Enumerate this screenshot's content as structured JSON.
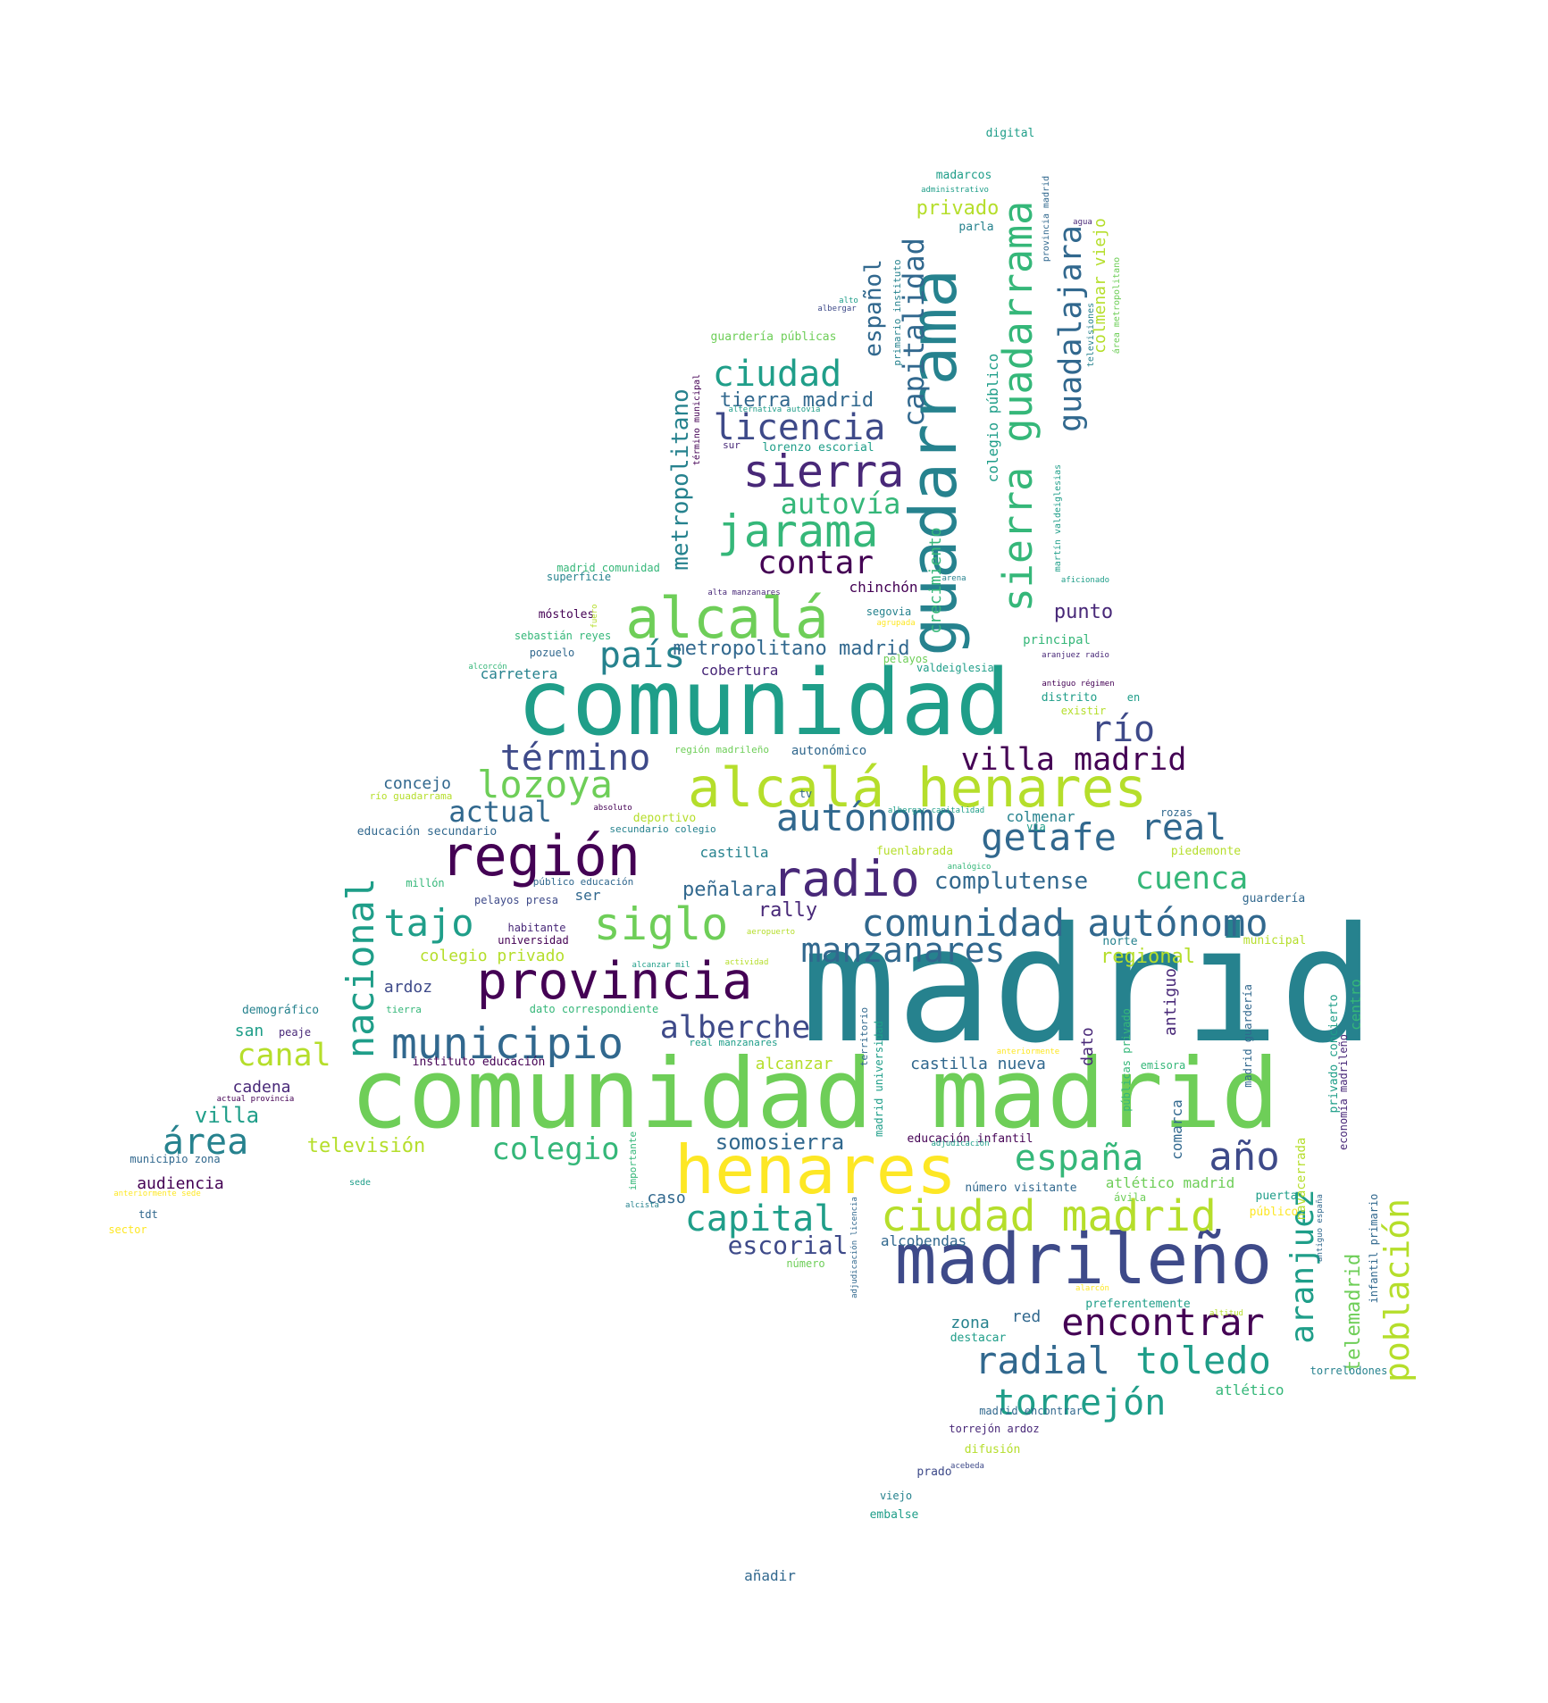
{
  "palette": {
    "c0": "#440154",
    "c1": "#482878",
    "c2": "#3e4a89",
    "c3": "#31688e",
    "c4": "#26828e",
    "c5": "#1f9e89",
    "c6": "#35b779",
    "c7": "#6ece58",
    "c8": "#b5de2b",
    "c9": "#fde725"
  },
  "words": [
    {
      "text": "madrid",
      "color": "c4"
    },
    {
      "text": "comunidad madrid",
      "color": "c7"
    },
    {
      "text": "comunidad",
      "color": "c5"
    },
    {
      "text": "guadarrama",
      "color": "c4"
    },
    {
      "text": "madrileño",
      "color": "c2"
    },
    {
      "text": "henares",
      "color": "c9"
    },
    {
      "text": "alcalá henares",
      "color": "c8"
    },
    {
      "text": "región",
      "color": "c0"
    },
    {
      "text": "alcalá",
      "color": "c7"
    },
    {
      "text": "provincia",
      "color": "c0"
    },
    {
      "text": "sierra guadarrama",
      "color": "c6"
    },
    {
      "text": "radio",
      "color": "c1"
    },
    {
      "text": "ciudad madrid",
      "color": "c8"
    },
    {
      "text": "municipio",
      "color": "c3"
    },
    {
      "text": "sierra",
      "color": "c1"
    },
    {
      "text": "jarama",
      "color": "c6"
    },
    {
      "text": "siglo",
      "color": "c7"
    },
    {
      "text": "comunidad autónomo",
      "color": "c3"
    },
    {
      "text": "población",
      "color": "c8"
    },
    {
      "text": "nacional",
      "color": "c5"
    },
    {
      "text": "aranjuez",
      "color": "c5"
    },
    {
      "text": "encontrar",
      "color": "c0"
    },
    {
      "text": "toledo",
      "color": "c5"
    },
    {
      "text": "radial",
      "color": "c3"
    },
    {
      "text": "autónomo",
      "color": "c3"
    },
    {
      "text": "getafe",
      "color": "c3"
    },
    {
      "text": "área",
      "color": "c4"
    },
    {
      "text": "año",
      "color": "c2"
    },
    {
      "text": "tajo",
      "color": "c5"
    },
    {
      "text": "lozoya",
      "color": "c7"
    },
    {
      "text": "manzanares",
      "color": "c3"
    },
    {
      "text": "capital",
      "color": "c5"
    },
    {
      "text": "ciudad",
      "color": "c5"
    },
    {
      "text": "licencia",
      "color": "c2"
    },
    {
      "text": "guadalajara",
      "color": "c3"
    },
    {
      "text": "villa madrid",
      "color": "c0"
    },
    {
      "text": "españa",
      "color": "c6"
    },
    {
      "text": "torrejón",
      "color": "c5"
    },
    {
      "text": "término",
      "color": "c2"
    },
    {
      "text": "cuenca",
      "color": "c6"
    },
    {
      "text": "río",
      "color": "c2"
    },
    {
      "text": "real",
      "color": "c3"
    },
    {
      "text": "alberche",
      "color": "c2"
    },
    {
      "text": "canal",
      "color": "c8"
    },
    {
      "text": "colegio",
      "color": "c6"
    },
    {
      "text": "país",
      "color": "c4"
    },
    {
      "text": "contar",
      "color": "c0"
    },
    {
      "text": "capitalidad",
      "color": "c3"
    },
    {
      "text": "metropolitano",
      "color": "c4"
    },
    {
      "text": "actual",
      "color": "c3"
    },
    {
      "text": "autovía",
      "color": "c6"
    },
    {
      "text": "escorial",
      "color": "c2"
    },
    {
      "text": "español",
      "color": "c3"
    },
    {
      "text": "metropolitano madrid",
      "color": "c3"
    },
    {
      "text": "tierra madrid",
      "color": "c3"
    },
    {
      "text": "complutense",
      "color": "c3"
    },
    {
      "text": "villa",
      "color": "c5"
    },
    {
      "text": "somosierra",
      "color": "c3"
    },
    {
      "text": "televisión",
      "color": "c8"
    },
    {
      "text": "telemadrid",
      "color": "c7"
    },
    {
      "text": "colmenar viejo",
      "color": "c8"
    },
    {
      "text": "peñalara",
      "color": "c3"
    },
    {
      "text": "rally",
      "color": "c1"
    },
    {
      "text": "privado",
      "color": "c8"
    },
    {
      "text": "regional",
      "color": "c8"
    },
    {
      "text": "crecimiento",
      "color": "c6"
    },
    {
      "text": "punto",
      "color": "c1"
    },
    {
      "text": "concejo",
      "color": "c3"
    },
    {
      "text": "castilla nueva",
      "color": "c3"
    },
    {
      "text": "antiguo",
      "color": "c1"
    },
    {
      "text": "dato",
      "color": "c1"
    },
    {
      "text": "audiencia",
      "color": "c0"
    },
    {
      "text": "red",
      "color": "c3"
    },
    {
      "text": "zona",
      "color": "c4"
    },
    {
      "text": "alcanzar",
      "color": "c8"
    },
    {
      "text": "cadena",
      "color": "c1"
    },
    {
      "text": "san",
      "color": "c5"
    },
    {
      "text": "ardoz",
      "color": "c2"
    },
    {
      "text": "colegio privado",
      "color": "c8"
    },
    {
      "text": "colegio público",
      "color": "c5"
    },
    {
      "text": "centro",
      "color": "c6"
    },
    {
      "text": "cobertura",
      "color": "c1"
    },
    {
      "text": "chinchón",
      "color": "c0"
    },
    {
      "text": "colmenar",
      "color": "c4"
    },
    {
      "text": "castilla",
      "color": "c4"
    },
    {
      "text": "caso",
      "color": "c3"
    },
    {
      "text": "alcobendas",
      "color": "c3"
    },
    {
      "text": "atlético madrid",
      "color": "c7"
    },
    {
      "text": "atlético",
      "color": "c6"
    },
    {
      "text": "carretera",
      "color": "c4"
    },
    {
      "text": "ser",
      "color": "c3"
    },
    {
      "text": "comarca",
      "color": "c3"
    },
    {
      "text": "navacerrada",
      "color": "c8"
    },
    {
      "text": "privado concierto",
      "color": "c5"
    },
    {
      "text": "educación infantil",
      "color": "c0"
    },
    {
      "text": "número visitante",
      "color": "c3"
    },
    {
      "text": "principal",
      "color": "c6"
    },
    {
      "text": "lorenzo escorial",
      "color": "c5"
    },
    {
      "text": "guardería públicas",
      "color": "c7"
    },
    {
      "text": "madarcos",
      "color": "c5"
    },
    {
      "text": "digital",
      "color": "c5"
    },
    {
      "text": "parla",
      "color": "c4"
    },
    {
      "text": "madrid universidad",
      "color": "c5"
    },
    {
      "text": "madrid guardería",
      "color": "c3"
    },
    {
      "text": "economía madrileño",
      "color": "c1"
    },
    {
      "text": "infantil primario",
      "color": "c3"
    },
    {
      "text": "públicas privado",
      "color": "c6"
    },
    {
      "text": "preferentemente",
      "color": "c5"
    },
    {
      "text": "destacar",
      "color": "c5"
    },
    {
      "text": "madrid encontrar",
      "color": "c3"
    },
    {
      "text": "torrejón ardoz",
      "color": "c1"
    },
    {
      "text": "difusión",
      "color": "c8"
    },
    {
      "text": "prado",
      "color": "c2"
    },
    {
      "text": "viejo",
      "color": "c4"
    },
    {
      "text": "embalse",
      "color": "c5"
    },
    {
      "text": "añadir",
      "color": "c3"
    },
    {
      "text": "torrelodones",
      "color": "c4"
    },
    {
      "text": "puerta",
      "color": "c5"
    },
    {
      "text": "público",
      "color": "c9"
    },
    {
      "text": "emisora",
      "color": "c6"
    },
    {
      "text": "ávila",
      "color": "c7"
    },
    {
      "text": "guardería",
      "color": "c3"
    },
    {
      "text": "municipal",
      "color": "c8"
    },
    {
      "text": "norte",
      "color": "c4"
    },
    {
      "text": "piedemonte",
      "color": "c8"
    },
    {
      "text": "rozas",
      "color": "c3"
    },
    {
      "text": "fuenlabrada",
      "color": "c8"
    },
    {
      "text": "vía",
      "color": "c5"
    },
    {
      "text": "deportivo",
      "color": "c8"
    },
    {
      "text": "autonómico",
      "color": "c3"
    },
    {
      "text": "distrito",
      "color": "c5"
    },
    {
      "text": "existir",
      "color": "c8"
    },
    {
      "text": "en",
      "color": "c5"
    },
    {
      "text": "valdeiglesias",
      "color": "c5"
    },
    {
      "text": "pelayos",
      "color": "c7"
    },
    {
      "text": "segovia",
      "color": "c4"
    },
    {
      "text": "móstoles",
      "color": "c0"
    },
    {
      "text": "sebastián reyes",
      "color": "c6"
    },
    {
      "text": "pozuelo",
      "color": "c3"
    },
    {
      "text": "superficie",
      "color": "c4"
    },
    {
      "text": "madrid comunidad",
      "color": "c6"
    },
    {
      "text": "educación secundario",
      "color": "c3"
    },
    {
      "text": "millón",
      "color": "c6"
    },
    {
      "text": "pelayos presa",
      "color": "c2"
    },
    {
      "text": "habitante",
      "color": "c1"
    },
    {
      "text": "universidad",
      "color": "c0"
    },
    {
      "text": "dato correspondiente",
      "color": "c6"
    },
    {
      "text": "instituto educación",
      "color": "c0"
    },
    {
      "text": "demográfico",
      "color": "c4"
    },
    {
      "text": "peaje",
      "color": "c1"
    },
    {
      "text": "municipio zona",
      "color": "c3"
    },
    {
      "text": "tdt",
      "color": "c3"
    },
    {
      "text": "sector",
      "color": "c9"
    },
    {
      "text": "sede",
      "color": "c5"
    },
    {
      "text": "real manzanares",
      "color": "c5"
    },
    {
      "text": "secundario colegio",
      "color": "c4"
    },
    {
      "text": "público educación",
      "color": "c3"
    },
    {
      "text": "río guadarrama",
      "color": "c8"
    },
    {
      "text": "región madrileño",
      "color": "c7"
    },
    {
      "text": "importante",
      "color": "c6"
    },
    {
      "text": "número",
      "color": "c7"
    },
    {
      "text": "territorio",
      "color": "c3"
    },
    {
      "text": "primario instituto",
      "color": "c4"
    },
    {
      "text": "término municipal",
      "color": "c0"
    },
    {
      "text": "provincia madrid",
      "color": "c3"
    },
    {
      "text": "área metropolitano",
      "color": "c7"
    },
    {
      "text": "televisiones",
      "color": "c4"
    },
    {
      "text": "martín valdeiglesias",
      "color": "c5"
    },
    {
      "text": "antiguo régimen",
      "color": "c0"
    },
    {
      "text": "aranjuez radio",
      "color": "c1"
    },
    {
      "text": "albergar capitalidad",
      "color": "c5"
    },
    {
      "text": "absoluto",
      "color": "c0"
    },
    {
      "text": "alternativa autovía",
      "color": "c5"
    },
    {
      "text": "alta manzanares",
      "color": "c1"
    },
    {
      "text": "agrupada",
      "color": "c9"
    },
    {
      "text": "alcorcón",
      "color": "c6"
    },
    {
      "text": "aficionado",
      "color": "c5"
    },
    {
      "text": "arena",
      "color": "c4"
    },
    {
      "text": "fuero",
      "color": "c8"
    },
    {
      "text": "administrativo",
      "color": "c5"
    },
    {
      "text": "agua",
      "color": "c1"
    },
    {
      "text": "alto",
      "color": "c5"
    },
    {
      "text": "albergar",
      "color": "c2"
    },
    {
      "text": "sur",
      "color": "c1"
    },
    {
      "text": "tv",
      "color": "c3"
    },
    {
      "text": "tierra",
      "color": "c6"
    },
    {
      "text": "actual provincia",
      "color": "c0"
    },
    {
      "text": "anteriormente sede",
      "color": "c9"
    },
    {
      "text": "aeropuerto",
      "color": "c8"
    },
    {
      "text": "alcanzar mil",
      "color": "c5"
    },
    {
      "text": "actividad",
      "color": "c8"
    },
    {
      "text": "analógico",
      "color": "c6"
    },
    {
      "text": "adjudicación",
      "color": "c5"
    },
    {
      "text": "adjudicación licencia",
      "color": "c3"
    },
    {
      "text": "alcista",
      "color": "c4"
    },
    {
      "text": "anteriormente",
      "color": "c9"
    },
    {
      "text": "alarcón",
      "color": "c9"
    },
    {
      "text": "altitud",
      "color": "c8"
    },
    {
      "text": "antiguo españa",
      "color": "c3"
    },
    {
      "text": "acebeda",
      "color": "c2"
    }
  ]
}
